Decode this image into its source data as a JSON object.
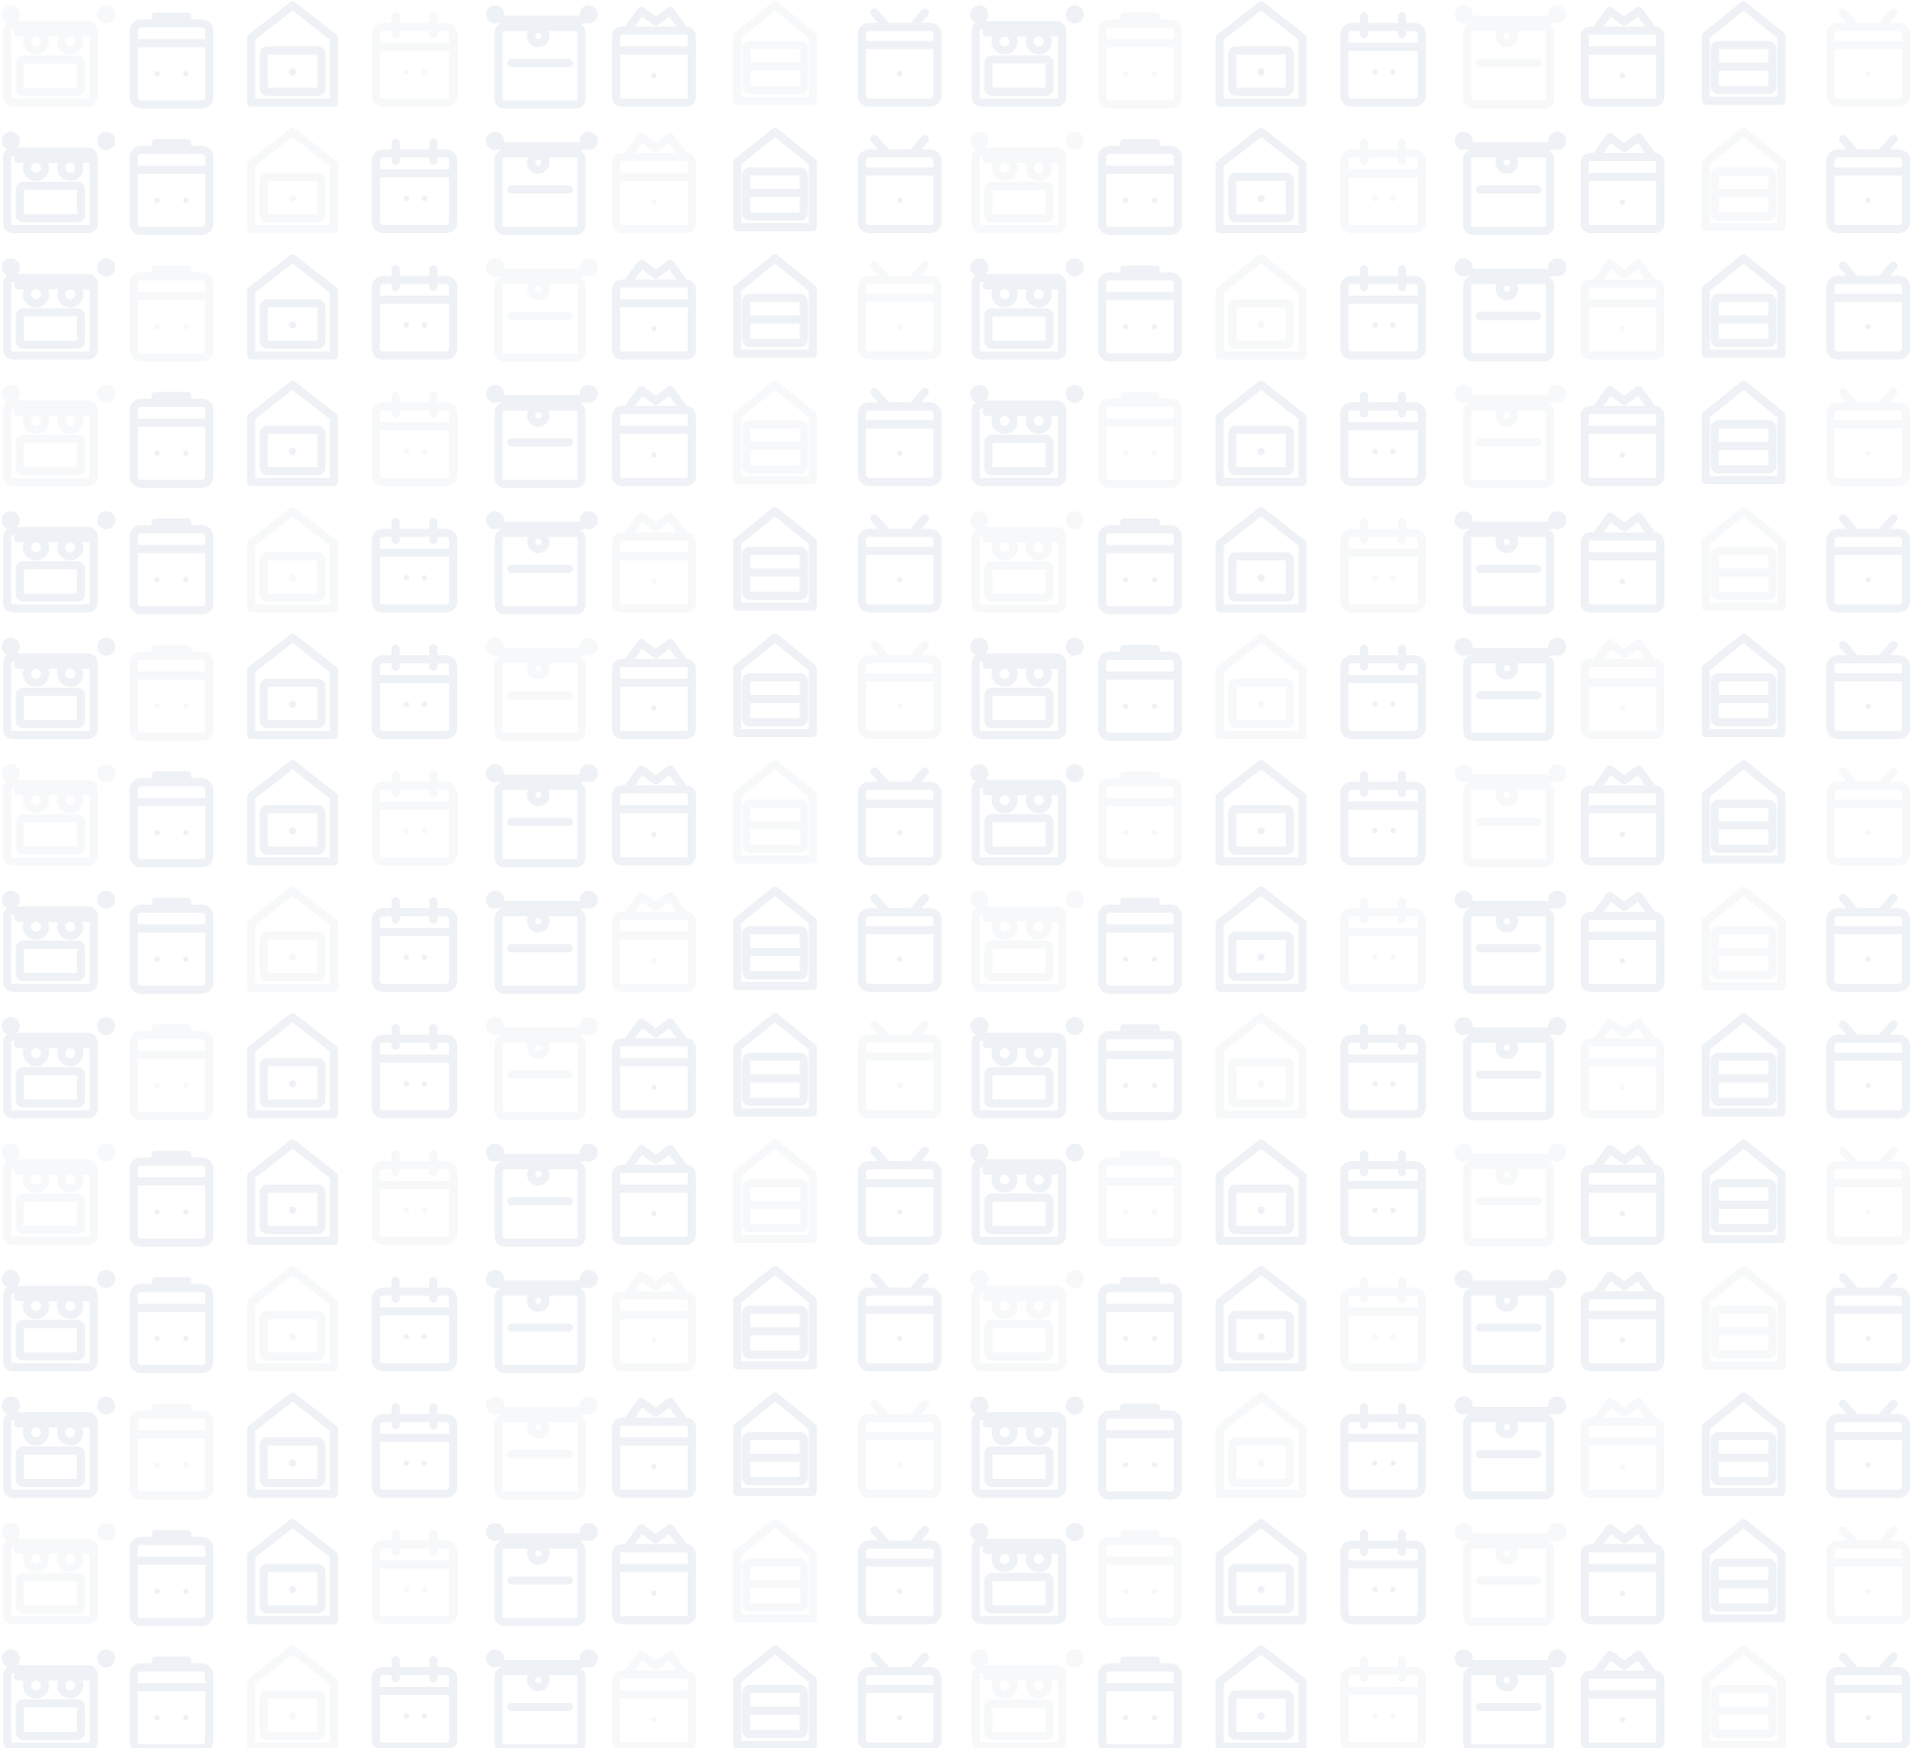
{
  "background": {
    "color": "#ffffff",
    "tile_color": "#eef1f5",
    "tile_color_light": "#f6f8fa",
    "pattern_icons": [
      "oven-icon",
      "box-icon",
      "house-box-icon",
      "calendar-icon",
      "clock-box-icon",
      "storage-icon",
      "house-box-icon",
      "calendar-icon"
    ]
  }
}
